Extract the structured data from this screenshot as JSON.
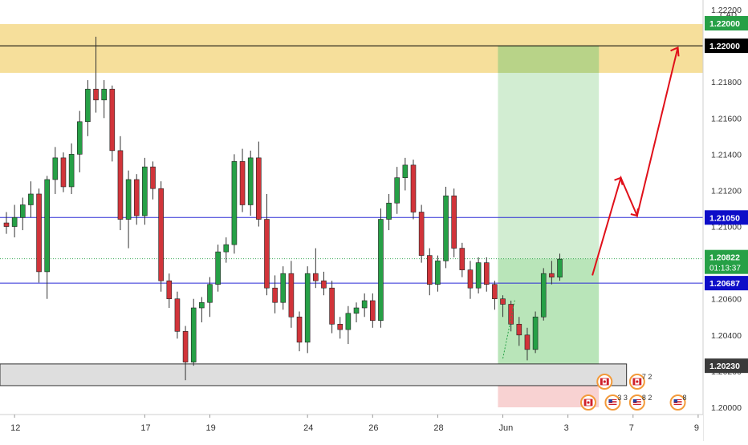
{
  "chart_data": {
    "type": "candlestick",
    "currency": "CAD",
    "ylim": [
      1.1995,
      1.2222
    ],
    "price_ticks": [
      "1.20000",
      "1.20200",
      "1.20400",
      "1.20600",
      "1.20800",
      "1.21000",
      "1.21200",
      "1.21400",
      "1.21600",
      "1.21800",
      "1.22000",
      "1.22200"
    ],
    "date_ticks": [
      {
        "label": "12",
        "x_idx": 1
      },
      {
        "label": "17",
        "x_idx": 17
      },
      {
        "label": "19",
        "x_idx": 25
      },
      {
        "label": "24",
        "x_idx": 37
      },
      {
        "label": "26",
        "x_idx": 45
      },
      {
        "label": "28",
        "x_idx": 53
      },
      {
        "label": "Jun",
        "x_idx": 61
      },
      {
        "label": "3",
        "x_idx": 69
      },
      {
        "label": "7",
        "x_idx": 77
      },
      {
        "label": "9",
        "x_idx": 85
      }
    ],
    "candles": [
      [
        1.2102,
        1.2108,
        1.2096,
        1.21
      ],
      [
        1.21,
        1.2112,
        1.2094,
        1.2105
      ],
      [
        1.2105,
        1.2116,
        1.2098,
        1.2112
      ],
      [
        1.2112,
        1.2125,
        1.2105,
        1.2118
      ],
      [
        1.2118,
        1.2121,
        1.2069,
        1.2075
      ],
      [
        1.2075,
        1.2128,
        1.206,
        1.2126
      ],
      [
        1.2126,
        1.2144,
        1.2118,
        1.2138
      ],
      [
        1.2138,
        1.2141,
        1.2119,
        1.2122
      ],
      [
        1.2122,
        1.2146,
        1.2118,
        1.214
      ],
      [
        1.214,
        1.2164,
        1.213,
        1.2158
      ],
      [
        1.2158,
        1.2181,
        1.215,
        1.2176
      ],
      [
        1.2176,
        1.2205,
        1.2163,
        1.217
      ],
      [
        1.217,
        1.2181,
        1.216,
        1.2176
      ],
      [
        1.2176,
        1.2178,
        1.2136,
        1.2142
      ],
      [
        1.2142,
        1.215,
        1.2098,
        1.2104
      ],
      [
        1.2104,
        1.2131,
        1.2088,
        1.2126
      ],
      [
        1.2126,
        1.2129,
        1.2101,
        1.2106
      ],
      [
        1.2106,
        1.2138,
        1.2101,
        1.2133
      ],
      [
        1.2133,
        1.2136,
        1.2115,
        1.2121
      ],
      [
        1.2121,
        1.2125,
        1.2064,
        1.207
      ],
      [
        1.207,
        1.2074,
        1.2055,
        1.206
      ],
      [
        1.206,
        1.2064,
        1.2038,
        1.2042
      ],
      [
        1.2042,
        1.2045,
        1.2015,
        1.2025
      ],
      [
        1.2025,
        1.206,
        1.2023,
        1.2055
      ],
      [
        1.2055,
        1.2061,
        1.2047,
        1.2058
      ],
      [
        1.2058,
        1.2072,
        1.205,
        1.2068
      ],
      [
        1.2068,
        1.209,
        1.2064,
        1.2086
      ],
      [
        1.2086,
        1.2094,
        1.208,
        1.209
      ],
      [
        1.209,
        1.214,
        1.2085,
        1.2136
      ],
      [
        1.2136,
        1.2143,
        1.2108,
        1.2112
      ],
      [
        1.2112,
        1.2142,
        1.2106,
        1.2138
      ],
      [
        1.2138,
        1.2147,
        1.21,
        1.2104
      ],
      [
        1.2104,
        1.2118,
        1.2062,
        1.2066
      ],
      [
        1.2066,
        1.2073,
        1.2052,
        1.2058
      ],
      [
        1.2058,
        1.2078,
        1.2054,
        1.2074
      ],
      [
        1.2074,
        1.2081,
        1.2044,
        1.205
      ],
      [
        1.205,
        1.2053,
        1.2031,
        1.2036
      ],
      [
        1.2036,
        1.2078,
        1.203,
        1.2074
      ],
      [
        1.2074,
        1.2088,
        1.2066,
        1.207
      ],
      [
        1.207,
        1.2075,
        1.2062,
        1.2066
      ],
      [
        1.2066,
        1.207,
        1.2041,
        1.2046
      ],
      [
        1.2046,
        1.205,
        1.2038,
        1.2043
      ],
      [
        1.2043,
        1.2056,
        1.2035,
        1.2052
      ],
      [
        1.2052,
        1.2058,
        1.2047,
        1.2055
      ],
      [
        1.2055,
        1.2063,
        1.205,
        1.2059
      ],
      [
        1.2059,
        1.2063,
        1.2044,
        1.2048
      ],
      [
        1.2048,
        1.211,
        1.2044,
        1.2104
      ],
      [
        1.2104,
        1.2118,
        1.2098,
        1.2113
      ],
      [
        1.2113,
        1.2133,
        1.2107,
        1.2127
      ],
      [
        1.2127,
        1.2138,
        1.212,
        1.2134
      ],
      [
        1.2134,
        1.2137,
        1.2104,
        1.2108
      ],
      [
        1.2108,
        1.2112,
        1.208,
        1.2084
      ],
      [
        1.2084,
        1.2088,
        1.2062,
        1.2068
      ],
      [
        1.2068,
        1.2084,
        1.2064,
        1.2081
      ],
      [
        1.2081,
        1.2122,
        1.2077,
        1.2117
      ],
      [
        1.2117,
        1.2121,
        1.2083,
        1.2088
      ],
      [
        1.2088,
        1.2091,
        1.2072,
        1.2076
      ],
      [
        1.2076,
        1.2081,
        1.206,
        1.2066
      ],
      [
        1.2066,
        1.2083,
        1.2063,
        1.208
      ],
      [
        1.208,
        1.2083,
        1.2064,
        1.2068
      ],
      [
        1.2068,
        1.207,
        1.2054,
        1.206
      ],
      [
        1.206,
        1.2062,
        1.205,
        1.2057
      ],
      [
        1.2057,
        1.2059,
        1.2042,
        1.2046
      ],
      [
        1.2046,
        1.205,
        1.2034,
        1.204
      ],
      [
        1.204,
        1.2044,
        1.2026,
        1.2032
      ],
      [
        1.2032,
        1.2053,
        1.203,
        1.205
      ],
      [
        1.205,
        1.2077,
        1.2048,
        1.2074
      ],
      [
        1.2074,
        1.2081,
        1.2068,
        1.2072
      ],
      [
        1.2072,
        1.2085,
        1.207,
        1.2082
      ]
    ],
    "horizontal_lines": [
      {
        "price": 1.22,
        "label": "1.22000",
        "color": "#000000",
        "label_bg": "#000000"
      },
      {
        "price": 1.2105,
        "label": "1.21050",
        "color": "#2b2bd6",
        "label_bg": "#0d0dc8"
      },
      {
        "price": 1.20687,
        "label": "1.20687",
        "color": "#2b2bd6",
        "label_bg": "#0d0dc8"
      },
      {
        "price": 1.2023,
        "label": "1.20230",
        "color": "#9a9a9a",
        "label_bg": "#3a3a3a"
      }
    ],
    "current_price": {
      "price": 1.20822,
      "label": "1.20822",
      "countdown": "01:13:37"
    },
    "top_tick_label": "1.22000",
    "zones": {
      "resistance": {
        "from": 1.2185,
        "to": 1.2212,
        "color": "#f5d98a"
      },
      "support": {
        "from": 1.2012,
        "to": 1.2024,
        "color": "#dedede"
      },
      "position_target": {
        "from": 1.20822,
        "to": 1.22
      },
      "position_stop": {
        "from": 1.2,
        "to": 1.20822
      }
    },
    "projection_path": [
      {
        "x_idx": 72.0,
        "price": 1.2073
      },
      {
        "x_idx": 75.5,
        "price": 1.2127
      },
      {
        "x_idx": 77.5,
        "price": 1.2106
      },
      {
        "x_idx": 82.5,
        "price": 1.2199
      }
    ],
    "event_markers": [
      {
        "x_idx": 73.5,
        "row": 0,
        "kind": "flag-ca",
        "count": ""
      },
      {
        "x_idx": 77.5,
        "row": 0,
        "kind": "flag-ca",
        "count": "7 2"
      },
      {
        "x_idx": 71.5,
        "row": 1,
        "kind": "flag-ca",
        "count": ""
      },
      {
        "x_idx": 74.5,
        "row": 1,
        "kind": "flag-us",
        "count": "3 3"
      },
      {
        "x_idx": 77.5,
        "row": 1,
        "kind": "flag-us",
        "count": "8 2"
      },
      {
        "x_idx": 82.5,
        "row": 1,
        "kind": "flag-us",
        "count": "8"
      }
    ],
    "colors": {
      "up": "#26a046",
      "down": "#d1343a",
      "axis_text": "#333333"
    }
  }
}
